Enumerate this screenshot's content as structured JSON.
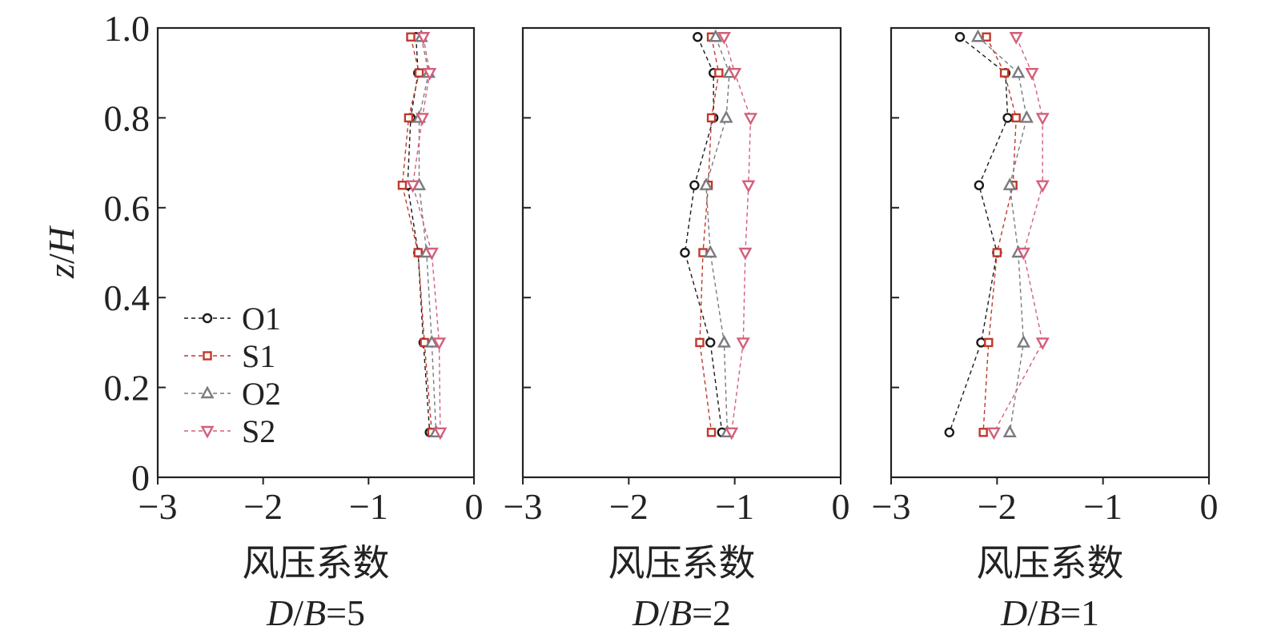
{
  "chart_data": {
    "type": "line",
    "ylabel_prefix": "z",
    "ylabel_slash": "/",
    "ylabel_suffix": "H",
    "ylim": [
      0,
      1.0
    ],
    "xlim": [
      -3,
      0
    ],
    "y_ticks": [
      "1.0",
      "0.8",
      "0.6",
      "0.4",
      "0.2",
      "0"
    ],
    "y_tick_values": [
      1.0,
      0.8,
      0.6,
      0.4,
      0.2,
      0
    ],
    "x_tick_labels": [
      "−3",
      "−2",
      "−1",
      "0"
    ],
    "x_tick_values": [
      -3,
      -2,
      -1,
      0
    ],
    "legend_position": "lower-left of first panel",
    "styles": {
      "O1": {
        "color": "#1a1a1a",
        "marker": "circle"
      },
      "S1": {
        "color": "#c0392b",
        "marker": "square"
      },
      "O2": {
        "color": "#7a7a80",
        "marker": "triangle-up"
      },
      "S2": {
        "color": "#d35f7a",
        "marker": "triangle-down"
      }
    },
    "legend": [
      "O1",
      "S1",
      "O2",
      "S2"
    ],
    "y": [
      0.98,
      0.9,
      0.8,
      0.65,
      0.5,
      0.3,
      0.1
    ],
    "panels": [
      {
        "xlabel": "风压系数",
        "caption_D": "D",
        "caption_slash": "/",
        "caption_B": "B",
        "caption_eq": "=5",
        "series": [
          {
            "name": "O1",
            "x": [
              -0.55,
              -0.53,
              -0.6,
              -0.63,
              -0.53,
              -0.48,
              -0.42
            ]
          },
          {
            "name": "S1",
            "x": [
              -0.6,
              -0.52,
              -0.62,
              -0.68,
              -0.53,
              -0.47,
              -0.4
            ]
          },
          {
            "name": "O2",
            "x": [
              -0.5,
              -0.43,
              -0.52,
              -0.52,
              -0.45,
              -0.4,
              -0.36
            ]
          },
          {
            "name": "S2",
            "x": [
              -0.48,
              -0.42,
              -0.49,
              -0.58,
              -0.4,
              -0.33,
              -0.32
            ]
          }
        ]
      },
      {
        "xlabel": "风压系数",
        "caption_D": "D",
        "caption_slash": "/",
        "caption_B": "B",
        "caption_eq": "=2",
        "series": [
          {
            "name": "O1",
            "x": [
              -1.35,
              -1.2,
              -1.2,
              -1.38,
              -1.47,
              -1.23,
              -1.12
            ]
          },
          {
            "name": "S1",
            "x": [
              -1.22,
              -1.15,
              -1.22,
              -1.25,
              -1.3,
              -1.33,
              -1.22
            ]
          },
          {
            "name": "O2",
            "x": [
              -1.18,
              -1.05,
              -1.08,
              -1.27,
              -1.23,
              -1.1,
              -1.07
            ]
          },
          {
            "name": "S2",
            "x": [
              -1.1,
              -1.0,
              -0.85,
              -0.87,
              -0.9,
              -0.92,
              -1.03
            ]
          }
        ]
      },
      {
        "xlabel": "风压系数",
        "caption_D": "D",
        "caption_slash": "/",
        "caption_B": "B",
        "caption_eq": "=1",
        "series": [
          {
            "name": "O1",
            "x": [
              -2.35,
              -1.92,
              -1.9,
              -2.17,
              -2.0,
              -2.15,
              -2.45
            ]
          },
          {
            "name": "S1",
            "x": [
              -2.1,
              -1.93,
              -1.82,
              -1.85,
              -2.0,
              -2.08,
              -2.13
            ]
          },
          {
            "name": "O2",
            "x": [
              -2.18,
              -1.8,
              -1.72,
              -1.88,
              -1.8,
              -1.75,
              -1.88
            ]
          },
          {
            "name": "S2",
            "x": [
              -1.82,
              -1.67,
              -1.57,
              -1.57,
              -1.75,
              -1.57,
              -2.03
            ]
          }
        ]
      }
    ]
  }
}
